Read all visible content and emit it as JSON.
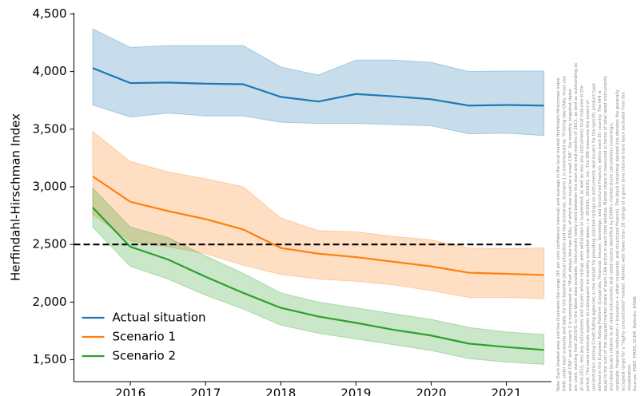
{
  "chart_data": {
    "type": "line",
    "y_label": "Herfindahl-Hirschman Index",
    "x": [
      2015.5,
      2016,
      2016.5,
      2017,
      2017.5,
      2018,
      2018.5,
      2019,
      2019.5,
      2020,
      2020.5,
      2021,
      2021.5
    ],
    "xlim": [
      2015.25,
      2021.6
    ],
    "xticks": [
      2016,
      2017,
      2018,
      2019,
      2020,
      2021
    ],
    "ylim": [
      1310,
      4510
    ],
    "yticks": [
      {
        "value": 1500,
        "label": "1,500"
      },
      {
        "value": 2000,
        "label": "2,000"
      },
      {
        "value": 2500,
        "label": "2,500"
      },
      {
        "value": 3000,
        "label": "3,000"
      },
      {
        "value": 3500,
        "label": "3,500"
      },
      {
        "value": 4000,
        "label": "4,000"
      },
      {
        "value": 4500,
        "label": "4,500"
      }
    ],
    "grid": false,
    "legend_position": "lower left",
    "reference_line": {
      "value": 2500,
      "color": "#000000",
      "style": "dashed"
    },
    "series": [
      {
        "name": "Actual situation",
        "color": "#1f77b4",
        "values": [
          4030,
          3900,
          3905,
          3895,
          3890,
          3780,
          3740,
          3805,
          3785,
          3760,
          3705,
          3710,
          3705
        ],
        "upper": [
          4370,
          4210,
          4225,
          4225,
          4225,
          4040,
          3970,
          4100,
          4100,
          4080,
          4000,
          4005,
          4005
        ],
        "lower": [
          3710,
          3605,
          3640,
          3615,
          3615,
          3560,
          3550,
          3550,
          3540,
          3530,
          3460,
          3465,
          3445
        ]
      },
      {
        "name": "Scenario 1",
        "color": "#ff7f0e",
        "values": [
          3090,
          2870,
          2790,
          2720,
          2630,
          2470,
          2420,
          2390,
          2350,
          2310,
          2255,
          2245,
          2235
        ],
        "upper": [
          3480,
          3220,
          3130,
          3070,
          3000,
          2730,
          2620,
          2610,
          2570,
          2540,
          2470,
          2465,
          2470
        ],
        "lower": [
          2760,
          2530,
          2480,
          2420,
          2320,
          2240,
          2200,
          2180,
          2150,
          2100,
          2040,
          2040,
          2030
        ]
      },
      {
        "name": "Scenario 2",
        "color": "#2ca02c",
        "values": [
          2820,
          2480,
          2370,
          2220,
          2080,
          1950,
          1875,
          1820,
          1760,
          1710,
          1640,
          1610,
          1585
        ],
        "upper": [
          2990,
          2650,
          2560,
          2400,
          2250,
          2080,
          2000,
          1950,
          1900,
          1850,
          1780,
          1740,
          1720
        ],
        "lower": [
          2650,
          2310,
          2200,
          2060,
          1940,
          1800,
          1730,
          1680,
          1630,
          1580,
          1510,
          1480,
          1460
        ]
      }
    ],
    "note_lines": [
      "Note: Each shaded area and line illustrates the range (95 per cent confidence interval) and average in the local market Herfindahl-Hirschman Index",
      "(HHI) under each scenario and date, for the baseline (Actual situation) and two scenarios. Scenario 1 is summarised as \"If hiring two CRAs, must use",
      "one small CRA\" and Scenario 2 is summarised as \"Must always hire two CRAs, of which one must be a small CRA\". Six-monthly snapshot dates",
      "are used, starting from 2015H1 to the latest data available. Instruments newly rated between the start and end months of 2015, as well as outstanding as",
      "at mid-2015, less any instruments and issuers whose ratings were withdrawn or suspended, as well as less any instruments that matured in the",
      "period. The same rationale applies to subsequent six-monthly snapshot dates, i.e. 2016H1, 2016H2, etc. The HHI measures the extent of",
      "concentration among Credit Rating Agencies in the market for providing solicited ratings on instruments and issuers for the specific product type",
      "defined in the European Rating Platform (Corporate, Financial, Insurer, Sovereign, and Structured Finance), within each EU country. The HHI is",
      "equal to the sum of the squared market share of each CRA active in each time window. Market share is measured in terms of total rated instruments",
      "and rated issuers relative to all rated instruments and rated issuers identified by ESMA's market share calculations (sovereign,",
      "corporate: financial institution + insurance + other corporate, and structured finance). The black horizontal dashed line denotes the generally",
      "accepted range for a \"highly concentrated\" market. Markets with fewer than 20 ratings at a given time interval have been excluded from the",
      "visualisation.",
      "Sources: ESRP, FIRDS, GLEIF, Refinitiv, ESMA."
    ]
  }
}
